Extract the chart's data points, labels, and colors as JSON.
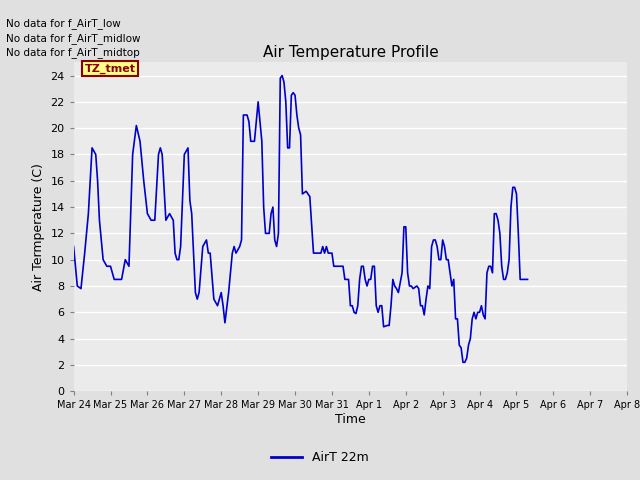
{
  "title": "Air Temperature Profile",
  "xlabel": "Time",
  "ylabel": "Air Termperature (C)",
  "line_color": "#0000cc",
  "line_width": 1.2,
  "background_color": "#e0e0e0",
  "plot_bg_color": "#ebebeb",
  "ylim": [
    0,
    25
  ],
  "yticks": [
    0,
    2,
    4,
    6,
    8,
    10,
    12,
    14,
    16,
    18,
    20,
    22,
    24
  ],
  "legend_label": "AirT 22m",
  "annotations": [
    "No data for f_AirT_low",
    "No data for f_AirT_midlow",
    "No data for f_AirT_midtop"
  ],
  "annotation_box_text": "TZ_tmet",
  "x_tick_labels": [
    "Mar 24",
    "Mar 25",
    "Mar 26",
    "Mar 27",
    "Mar 28",
    "Mar 29",
    "Mar 30",
    "Mar 31",
    "Apr 1",
    "Apr 2",
    "Apr 3",
    "Apr 4",
    "Apr 5",
    "Apr 6",
    "Apr 7",
    "Apr 8"
  ],
  "temp_data": [
    [
      0.0,
      11.0
    ],
    [
      0.1,
      8.0
    ],
    [
      0.2,
      7.8
    ],
    [
      0.3,
      10.5
    ],
    [
      0.4,
      13.5
    ],
    [
      0.5,
      18.5
    ],
    [
      0.6,
      18.0
    ],
    [
      0.65,
      16.0
    ],
    [
      0.7,
      13.0
    ],
    [
      0.8,
      10.0
    ],
    [
      0.9,
      9.5
    ],
    [
      1.0,
      9.5
    ],
    [
      1.1,
      8.5
    ],
    [
      1.2,
      8.5
    ],
    [
      1.3,
      8.5
    ],
    [
      1.4,
      10.0
    ],
    [
      1.5,
      9.5
    ],
    [
      1.6,
      18.0
    ],
    [
      1.7,
      20.2
    ],
    [
      1.8,
      19.0
    ],
    [
      1.85,
      17.5
    ],
    [
      1.9,
      16.0
    ],
    [
      2.0,
      13.5
    ],
    [
      2.1,
      13.0
    ],
    [
      2.2,
      13.0
    ],
    [
      2.3,
      18.0
    ],
    [
      2.35,
      18.5
    ],
    [
      2.4,
      18.0
    ],
    [
      2.5,
      13.0
    ],
    [
      2.6,
      13.5
    ],
    [
      2.7,
      13.0
    ],
    [
      2.75,
      10.5
    ],
    [
      2.8,
      10.0
    ],
    [
      2.85,
      10.0
    ],
    [
      2.9,
      11.0
    ],
    [
      3.0,
      18.0
    ],
    [
      3.1,
      18.5
    ],
    [
      3.15,
      14.5
    ],
    [
      3.2,
      13.5
    ],
    [
      3.3,
      7.5
    ],
    [
      3.35,
      7.0
    ],
    [
      3.4,
      7.5
    ],
    [
      3.5,
      11.0
    ],
    [
      3.6,
      11.5
    ],
    [
      3.65,
      10.5
    ],
    [
      3.7,
      10.5
    ],
    [
      3.8,
      7.0
    ],
    [
      3.9,
      6.5
    ],
    [
      3.95,
      7.0
    ],
    [
      4.0,
      7.5
    ],
    [
      4.05,
      6.5
    ],
    [
      4.1,
      5.2
    ],
    [
      4.2,
      7.5
    ],
    [
      4.3,
      10.5
    ],
    [
      4.35,
      11.0
    ],
    [
      4.4,
      10.5
    ],
    [
      4.5,
      11.0
    ],
    [
      4.55,
      11.5
    ],
    [
      4.6,
      21.0
    ],
    [
      4.7,
      21.0
    ],
    [
      4.75,
      20.5
    ],
    [
      4.8,
      19.0
    ],
    [
      4.9,
      19.0
    ],
    [
      5.0,
      22.0
    ],
    [
      5.1,
      19.0
    ],
    [
      5.15,
      14.0
    ],
    [
      5.2,
      12.0
    ],
    [
      5.25,
      12.0
    ],
    [
      5.3,
      12.0
    ],
    [
      5.35,
      13.5
    ],
    [
      5.4,
      14.0
    ],
    [
      5.45,
      11.5
    ],
    [
      5.5,
      11.0
    ],
    [
      5.55,
      12.0
    ],
    [
      5.6,
      23.8
    ],
    [
      5.65,
      24.0
    ],
    [
      5.7,
      23.5
    ],
    [
      5.75,
      22.0
    ],
    [
      5.8,
      18.5
    ],
    [
      5.85,
      18.5
    ],
    [
      5.9,
      22.5
    ],
    [
      5.95,
      22.7
    ],
    [
      6.0,
      22.5
    ],
    [
      6.05,
      21.0
    ],
    [
      6.1,
      20.0
    ],
    [
      6.15,
      19.5
    ],
    [
      6.2,
      15.0
    ],
    [
      6.3,
      15.2
    ],
    [
      6.35,
      15.0
    ],
    [
      6.4,
      14.8
    ],
    [
      6.5,
      10.5
    ],
    [
      6.6,
      10.5
    ],
    [
      6.7,
      10.5
    ],
    [
      6.75,
      11.0
    ],
    [
      6.8,
      10.5
    ],
    [
      6.85,
      11.0
    ],
    [
      6.9,
      10.5
    ],
    [
      7.0,
      10.5
    ],
    [
      7.05,
      9.5
    ],
    [
      7.1,
      9.5
    ],
    [
      7.15,
      9.5
    ],
    [
      7.2,
      9.5
    ],
    [
      7.25,
      9.5
    ],
    [
      7.3,
      9.5
    ],
    [
      7.35,
      8.5
    ],
    [
      7.4,
      8.5
    ],
    [
      7.45,
      8.5
    ],
    [
      7.5,
      6.5
    ],
    [
      7.55,
      6.5
    ],
    [
      7.6,
      6.0
    ],
    [
      7.65,
      5.9
    ],
    [
      7.7,
      6.5
    ],
    [
      7.75,
      8.5
    ],
    [
      7.8,
      9.5
    ],
    [
      7.85,
      9.5
    ],
    [
      7.9,
      8.5
    ],
    [
      7.95,
      8.0
    ],
    [
      8.0,
      8.5
    ],
    [
      8.05,
      8.5
    ],
    [
      8.1,
      9.5
    ],
    [
      8.15,
      9.5
    ],
    [
      8.2,
      6.5
    ],
    [
      8.25,
      6.0
    ],
    [
      8.3,
      6.5
    ],
    [
      8.35,
      6.5
    ],
    [
      8.4,
      4.9
    ],
    [
      8.5,
      5.0
    ],
    [
      8.55,
      5.0
    ],
    [
      8.6,
      6.5
    ],
    [
      8.65,
      8.5
    ],
    [
      8.7,
      8.0
    ],
    [
      8.75,
      7.8
    ],
    [
      8.8,
      7.5
    ],
    [
      8.9,
      9.0
    ],
    [
      8.95,
      12.5
    ],
    [
      9.0,
      12.5
    ],
    [
      9.05,
      9.0
    ],
    [
      9.1,
      8.0
    ],
    [
      9.15,
      8.0
    ],
    [
      9.2,
      7.8
    ],
    [
      9.3,
      8.0
    ],
    [
      9.35,
      7.8
    ],
    [
      9.4,
      6.5
    ],
    [
      9.45,
      6.5
    ],
    [
      9.5,
      5.8
    ],
    [
      9.55,
      7.0
    ],
    [
      9.6,
      8.0
    ],
    [
      9.65,
      7.8
    ],
    [
      9.7,
      11.0
    ],
    [
      9.75,
      11.5
    ],
    [
      9.8,
      11.5
    ],
    [
      9.85,
      11.0
    ],
    [
      9.9,
      10.0
    ],
    [
      9.95,
      10.0
    ],
    [
      10.0,
      11.5
    ],
    [
      10.05,
      11.0
    ],
    [
      10.1,
      10.0
    ],
    [
      10.15,
      10.0
    ],
    [
      10.2,
      9.0
    ],
    [
      10.25,
      8.0
    ],
    [
      10.3,
      8.5
    ],
    [
      10.35,
      5.5
    ],
    [
      10.4,
      5.5
    ],
    [
      10.45,
      3.5
    ],
    [
      10.5,
      3.3
    ],
    [
      10.55,
      2.2
    ],
    [
      10.6,
      2.2
    ],
    [
      10.65,
      2.5
    ],
    [
      10.7,
      3.5
    ],
    [
      10.75,
      4.0
    ],
    [
      10.8,
      5.5
    ],
    [
      10.85,
      6.0
    ],
    [
      10.9,
      5.5
    ],
    [
      10.95,
      6.0
    ],
    [
      11.0,
      6.0
    ],
    [
      11.05,
      6.5
    ],
    [
      11.1,
      5.8
    ],
    [
      11.15,
      5.5
    ],
    [
      11.2,
      9.0
    ],
    [
      11.25,
      9.5
    ],
    [
      11.3,
      9.5
    ],
    [
      11.35,
      9.0
    ],
    [
      11.4,
      13.5
    ],
    [
      11.45,
      13.5
    ],
    [
      11.5,
      13.0
    ],
    [
      11.55,
      12.0
    ],
    [
      11.6,
      9.5
    ],
    [
      11.65,
      8.5
    ],
    [
      11.7,
      8.5
    ],
    [
      11.75,
      9.0
    ],
    [
      11.8,
      10.0
    ],
    [
      11.85,
      14.0
    ],
    [
      11.9,
      15.5
    ],
    [
      11.95,
      15.5
    ],
    [
      12.0,
      15.0
    ],
    [
      12.05,
      12.0
    ],
    [
      12.1,
      8.5
    ],
    [
      12.15,
      8.5
    ],
    [
      12.2,
      8.5
    ],
    [
      12.25,
      8.5
    ],
    [
      12.3,
      8.5
    ]
  ]
}
